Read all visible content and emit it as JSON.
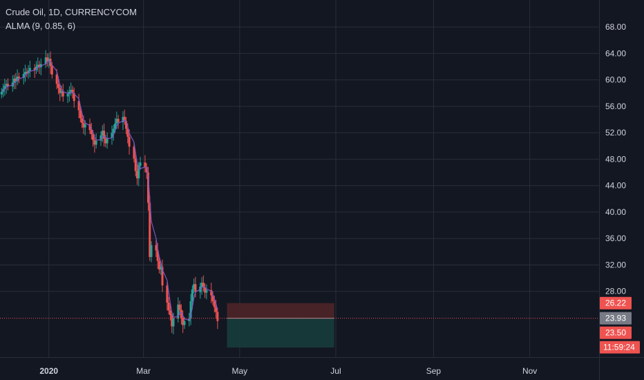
{
  "header": {
    "title": "Crude Oil, 1D, CURRENCYCOM",
    "indicator": "ALMA (9, 0.85, 6)"
  },
  "colors": {
    "background": "#131722",
    "grid": "#2a2e39",
    "up": "#26a69a",
    "down": "#ef5350",
    "alma": "#7e57c2",
    "text": "#d1d4dc",
    "tag_red": "#ef5350",
    "tag_gray": "#787b86",
    "profit_zone": "#173a3a",
    "loss_zone": "#4a2428"
  },
  "chart_data": {
    "type": "candlestick",
    "title": "Crude Oil, 1D, CURRENCYCOM",
    "indicator": "ALMA (9, 0.85, 6)",
    "ylim": [
      19.5,
      70.0
    ],
    "y_ticks": [
      "68.00",
      "64.00",
      "60.00",
      "56.00",
      "52.00",
      "48.00",
      "44.00",
      "40.00",
      "36.00",
      "32.00",
      "28.00"
    ],
    "x_ticks": [
      {
        "label": "2020",
        "date": "2020-01-01",
        "bold": true
      },
      {
        "label": "Mar",
        "date": "2020-03-01"
      },
      {
        "label": "May",
        "date": "2020-05-01"
      },
      {
        "label": "Jul",
        "date": "2020-07-01"
      },
      {
        "label": "Sep",
        "date": "2020-09-01"
      },
      {
        "label": "Nov",
        "date": "2020-11-01"
      }
    ],
    "x_start": "2019-12-01",
    "x_end": "2020-12-15",
    "first_candle_date": "2019-12-02",
    "closes": [
      58.2,
      58.6,
      59.1,
      59.4,
      59.0,
      59.6,
      60.2,
      59.8,
      60.5,
      60.3,
      60.9,
      61.2,
      61.0,
      61.4,
      61.8,
      61.5,
      62.0,
      62.3,
      61.9,
      62.4,
      63.4,
      62.8,
      63.2,
      62.1,
      60.8,
      59.4,
      58.8,
      58.0,
      58.3,
      57.5,
      57.9,
      58.2,
      58.5,
      58.0,
      56.8,
      55.4,
      54.2,
      53.5,
      52.8,
      53.3,
      52.4,
      51.8,
      50.9,
      50.2,
      50.8,
      51.6,
      52.3,
      51.1,
      50.4,
      51.2,
      52.0,
      52.6,
      53.4,
      54.1,
      53.6,
      54.4,
      53.8,
      52.6,
      51.4,
      49.9,
      48.1,
      46.2,
      45.1,
      47.0,
      47.5,
      46.8,
      46.0,
      41.4,
      33.2,
      35.0,
      34.2,
      32.6,
      31.3,
      31.7,
      28.9,
      26.3,
      25.1,
      24.4,
      22.7,
      23.9,
      26.0,
      25.2,
      24.0,
      22.9,
      23.5,
      23.9,
      26.5,
      28.3,
      29.1,
      27.9,
      28.7,
      29.3,
      28.6,
      27.8,
      28.2,
      27.4,
      26.5,
      25.6,
      24.9,
      23.5
    ],
    "last_price": 23.93,
    "position": {
      "entry": 23.93,
      "stop": 26.22,
      "target": 19.5,
      "start_date": "2020-04-23",
      "end_date": "2020-06-30"
    },
    "price_tags": [
      {
        "value": 26.22,
        "text": "26.22",
        "style": "red"
      },
      {
        "value": 23.93,
        "text": "23.93",
        "style": "gray"
      },
      {
        "value": 23.5,
        "text": "23.50",
        "style": "red"
      }
    ],
    "countdown": "11:59:24"
  }
}
